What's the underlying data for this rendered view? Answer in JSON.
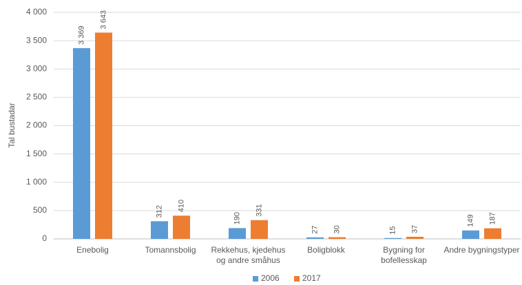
{
  "chart_data": {
    "type": "bar",
    "y_axis_label": "Tal bustadar",
    "categories": [
      "Enebolig",
      "Tomannsbolig",
      "Rekkehus, kjedehus\nog andre småhus",
      "Boligblokk",
      "Bygning for\nbofellesskap",
      "Andre bygningstyper"
    ],
    "series": [
      {
        "name": "2006",
        "color": "#5b9bd5",
        "values": [
          3369,
          312,
          190,
          27,
          15,
          149
        ],
        "value_labels": [
          "3 369",
          "312",
          "190",
          "27",
          "15",
          "149"
        ]
      },
      {
        "name": "2017",
        "color": "#ed7d31",
        "values": [
          3643,
          410,
          331,
          30,
          37,
          187
        ],
        "value_labels": [
          "3 643",
          "410",
          "331",
          "30",
          "37",
          "187"
        ]
      }
    ],
    "ylim": [
      0,
      4000
    ],
    "yticks": [
      0,
      500,
      {
        "value": 1000,
        "label": "1 000"
      },
      {
        "value": 1500,
        "label": "1 500"
      },
      {
        "value": 2000,
        "label": "2 000"
      },
      {
        "value": 2500,
        "label": "2 500"
      },
      {
        "value": 3000,
        "label": "3 000"
      },
      {
        "value": 3500,
        "label": "3 500"
      },
      {
        "value": 4000,
        "label": "4 000"
      }
    ],
    "grid": true,
    "legend": "bottom"
  }
}
